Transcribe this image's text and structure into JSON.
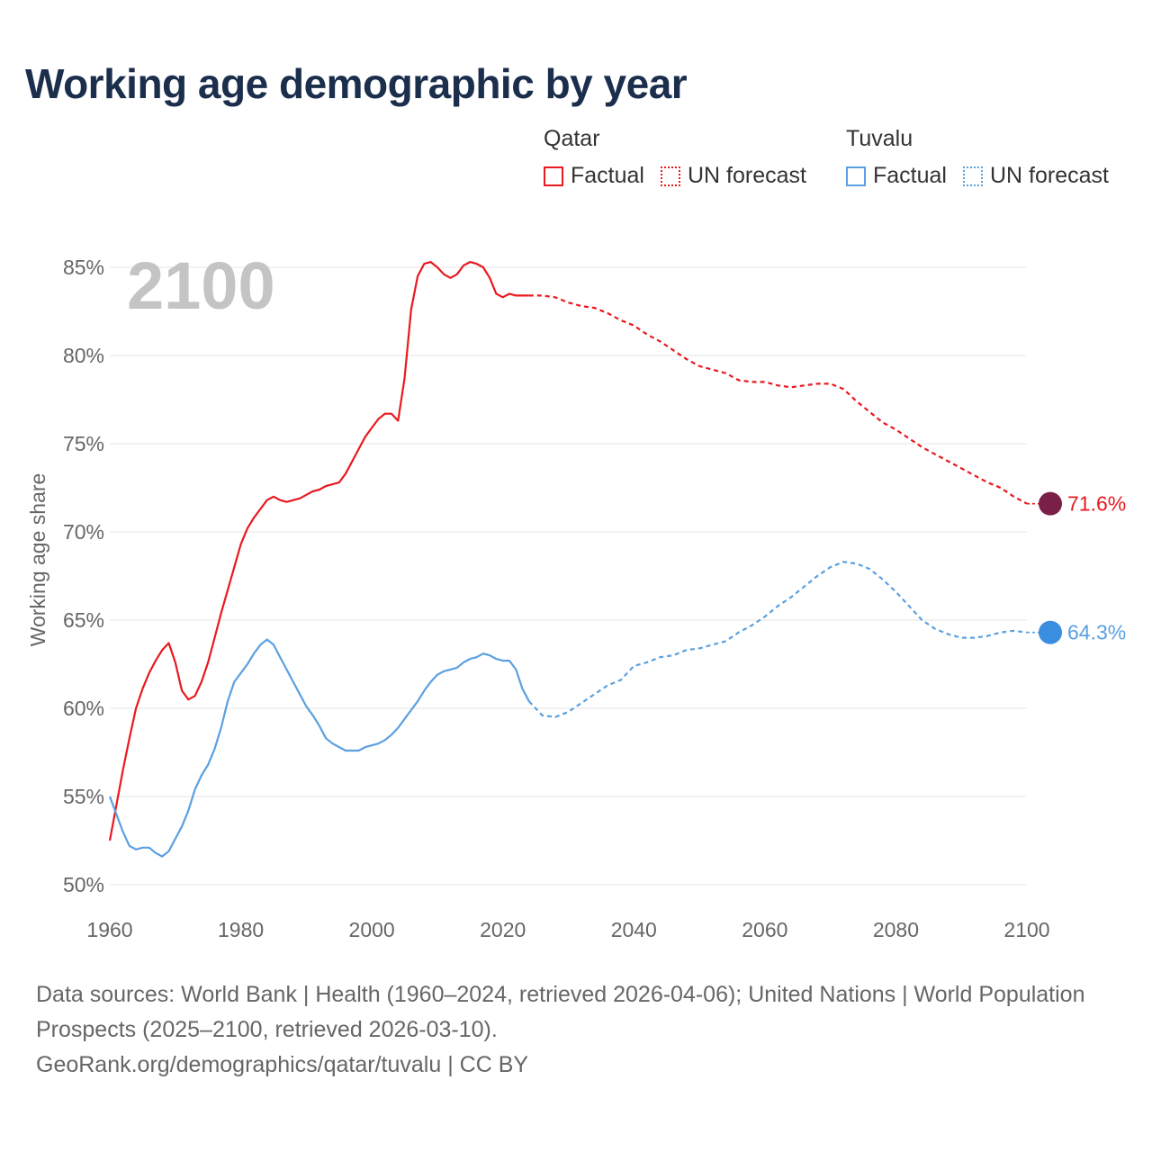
{
  "title": "Working age demographic by year",
  "legend": {
    "groups": [
      {
        "country": "Qatar",
        "factual_label": "Factual",
        "forecast_label": "UN forecast"
      },
      {
        "country": "Tuvalu",
        "factual_label": "Factual",
        "forecast_label": "UN forecast"
      }
    ]
  },
  "footer": {
    "line1": "Data sources: World Bank | Health (1960–2024, retrieved 2026-04-06); United Nations | World Population Prospects (2025–2100, retrieved 2026-03-10).",
    "line2": "GeoRank.org/demographics/qatar/tuvalu | CC BY"
  },
  "chart_data": {
    "type": "line",
    "title": "Working age demographic by year",
    "xlabel": "",
    "ylabel": "Working age share",
    "year_watermark": "2100",
    "xlim": [
      1960,
      2100
    ],
    "ylim": [
      50,
      86
    ],
    "x_ticks": [
      1960,
      1980,
      2000,
      2020,
      2040,
      2060,
      2080,
      2100
    ],
    "x_tick_labels": [
      "1960",
      "1980",
      "2000",
      "2020",
      "2040",
      "2060",
      "2080",
      "2100"
    ],
    "y_ticks": [
      50,
      55,
      60,
      65,
      70,
      75,
      80,
      85
    ],
    "y_tick_labels": [
      "50%",
      "55%",
      "60%",
      "65%",
      "70%",
      "75%",
      "80%",
      "85%"
    ],
    "grid": true,
    "series": [
      {
        "name": "Qatar",
        "color": "#e8191f",
        "end_label": "71.6%",
        "end_marker_color": "#7a1f45",
        "factual": {
          "x": [
            1960,
            1961,
            1962,
            1963,
            1964,
            1965,
            1966,
            1967,
            1968,
            1969,
            1970,
            1971,
            1972,
            1973,
            1974,
            1975,
            1976,
            1977,
            1978,
            1979,
            1980,
            1981,
            1982,
            1983,
            1984,
            1985,
            1986,
            1987,
            1988,
            1989,
            1990,
            1991,
            1992,
            1993,
            1994,
            1995,
            1996,
            1997,
            1998,
            1999,
            2000,
            2001,
            2002,
            2003,
            2004,
            2005,
            2006,
            2007,
            2008,
            2009,
            2010,
            2011,
            2012,
            2013,
            2014,
            2015,
            2016,
            2017,
            2018,
            2019,
            2020,
            2021,
            2022,
            2023,
            2024
          ],
          "values": [
            52.5,
            54.5,
            56.5,
            58.3,
            60.0,
            61.1,
            62.0,
            62.7,
            63.3,
            63.7,
            62.6,
            61.0,
            60.5,
            60.7,
            61.5,
            62.6,
            64.0,
            65.4,
            66.7,
            68.0,
            69.3,
            70.2,
            70.8,
            71.3,
            71.8,
            72.0,
            71.8,
            71.7,
            71.8,
            71.9,
            72.1,
            72.3,
            72.4,
            72.6,
            72.7,
            72.8,
            73.3,
            74.0,
            74.7,
            75.4,
            75.9,
            76.4,
            76.7,
            76.7,
            76.3,
            78.7,
            82.6,
            84.5,
            85.2,
            85.3,
            85.0,
            84.6,
            84.4,
            84.6,
            85.1,
            85.3,
            85.2,
            85.0,
            84.4,
            83.5,
            83.3,
            83.5,
            83.4,
            83.4,
            83.4
          ]
        },
        "forecast": {
          "x": [
            2024,
            2026,
            2028,
            2030,
            2032,
            2034,
            2036,
            2038,
            2040,
            2042,
            2044,
            2046,
            2048,
            2050,
            2052,
            2054,
            2056,
            2058,
            2060,
            2062,
            2064,
            2066,
            2068,
            2070,
            2072,
            2074,
            2076,
            2078,
            2080,
            2082,
            2084,
            2086,
            2088,
            2090,
            2092,
            2094,
            2096,
            2098,
            2100
          ],
          "values": [
            83.4,
            83.4,
            83.3,
            83.0,
            82.8,
            82.7,
            82.4,
            82.0,
            81.7,
            81.2,
            80.8,
            80.3,
            79.8,
            79.4,
            79.2,
            79.0,
            78.6,
            78.5,
            78.5,
            78.3,
            78.2,
            78.3,
            78.4,
            78.4,
            78.1,
            77.4,
            76.8,
            76.2,
            75.8,
            75.3,
            74.8,
            74.4,
            74.0,
            73.6,
            73.2,
            72.8,
            72.5,
            72.0,
            71.6
          ]
        }
      },
      {
        "name": "Tuvalu",
        "color": "#5aa0e0",
        "end_label": "64.3%",
        "end_marker_color": "#3a8ee0",
        "factual": {
          "x": [
            1960,
            1961,
            1962,
            1963,
            1964,
            1965,
            1966,
            1967,
            1968,
            1969,
            1970,
            1971,
            1972,
            1973,
            1974,
            1975,
            1976,
            1977,
            1978,
            1979,
            1980,
            1981,
            1982,
            1983,
            1984,
            1985,
            1986,
            1987,
            1988,
            1989,
            1990,
            1991,
            1992,
            1993,
            1994,
            1995,
            1996,
            1997,
            1998,
            1999,
            2000,
            2001,
            2002,
            2003,
            2004,
            2005,
            2006,
            2007,
            2008,
            2009,
            2010,
            2011,
            2012,
            2013,
            2014,
            2015,
            2016,
            2017,
            2018,
            2019,
            2020,
            2021,
            2022,
            2023,
            2024
          ],
          "values": [
            55.0,
            54.0,
            53.0,
            52.2,
            52.0,
            52.1,
            52.1,
            51.8,
            51.6,
            51.9,
            52.6,
            53.3,
            54.2,
            55.4,
            56.2,
            56.8,
            57.7,
            58.9,
            60.4,
            61.5,
            62.0,
            62.5,
            63.1,
            63.6,
            63.9,
            63.6,
            62.9,
            62.2,
            61.5,
            60.8,
            60.1,
            59.6,
            59.0,
            58.3,
            58.0,
            57.8,
            57.6,
            57.6,
            57.6,
            57.8,
            57.9,
            58.0,
            58.2,
            58.5,
            58.9,
            59.4,
            59.9,
            60.4,
            61.0,
            61.5,
            61.9,
            62.1,
            62.2,
            62.3,
            62.6,
            62.8,
            62.9,
            63.1,
            63.0,
            62.8,
            62.7,
            62.7,
            62.2,
            61.1,
            60.4
          ]
        },
        "forecast": {
          "x": [
            2024,
            2026,
            2028,
            2030,
            2032,
            2034,
            2036,
            2038,
            2040,
            2042,
            2044,
            2046,
            2048,
            2050,
            2052,
            2054,
            2056,
            2058,
            2060,
            2062,
            2064,
            2066,
            2068,
            2070,
            2072,
            2074,
            2076,
            2078,
            2080,
            2082,
            2084,
            2086,
            2088,
            2090,
            2092,
            2094,
            2096,
            2098,
            2100
          ],
          "values": [
            60.4,
            59.6,
            59.5,
            59.8,
            60.3,
            60.8,
            61.3,
            61.6,
            62.4,
            62.6,
            62.9,
            63.0,
            63.3,
            63.4,
            63.6,
            63.8,
            64.3,
            64.7,
            65.2,
            65.8,
            66.3,
            66.9,
            67.5,
            68.0,
            68.3,
            68.2,
            67.9,
            67.3,
            66.6,
            65.8,
            65.0,
            64.5,
            64.2,
            64.0,
            64.0,
            64.1,
            64.3,
            64.4,
            64.3
          ]
        }
      }
    ]
  }
}
